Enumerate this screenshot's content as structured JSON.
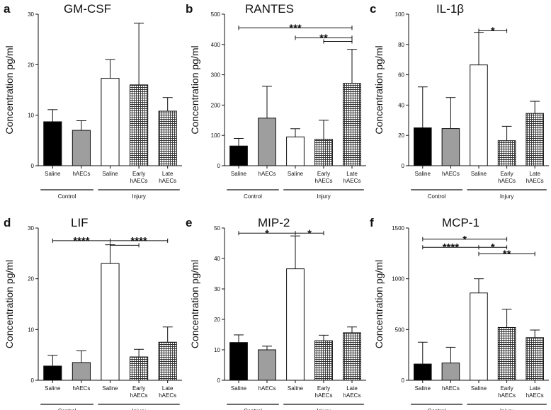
{
  "colors": {
    "saline_control": "#000000",
    "haecs_control": "#9e9e9e",
    "saline_injury": "#ffffff",
    "hatch": "#333333",
    "axis": "#111111"
  },
  "chart_data": [
    {
      "type": "bar",
      "letter": "a",
      "title": "GM-CSF",
      "ylabel": "Concentration pg/ml",
      "ylim": [
        0,
        30
      ],
      "yticks": [
        "0",
        "10",
        "20",
        "30"
      ],
      "categories": [
        "Saline",
        "hAECs",
        "Saline",
        "Early hAECs",
        "Late hAECs"
      ],
      "category_lines": [
        [
          "Saline"
        ],
        [
          "hAECs"
        ],
        [
          "Saline"
        ],
        [
          "Early",
          "hAECs"
        ],
        [
          "Late",
          "hAECs"
        ]
      ],
      "groups": [
        {
          "label": "Control",
          "span": [
            0,
            1
          ]
        },
        {
          "label": "Injury",
          "span": [
            2,
            4
          ]
        }
      ],
      "values": [
        8.7,
        7.0,
        17.3,
        16.0,
        10.8
      ],
      "errors": [
        2.4,
        1.9,
        3.7,
        12.2,
        2.7
      ],
      "significance": []
    },
    {
      "type": "bar",
      "letter": "b",
      "title": "RANTES",
      "ylabel": "Concentration pg/ml",
      "ylim": [
        0,
        500
      ],
      "yticks": [
        "0",
        "100",
        "200",
        "300",
        "400",
        "500"
      ],
      "categories": [
        "Saline",
        "hAECs",
        "Saline",
        "Early hAECs",
        "Late hAECs"
      ],
      "category_lines": [
        [
          "Saline"
        ],
        [
          "hAECs"
        ],
        [
          "Saline"
        ],
        [
          "Early",
          "hAECs"
        ],
        [
          "Late",
          "hAECs"
        ]
      ],
      "groups": [
        {
          "label": "Control",
          "span": [
            0,
            1
          ]
        },
        {
          "label": "Injury",
          "span": [
            2,
            4
          ]
        }
      ],
      "values": [
        65,
        157,
        95,
        87,
        272
      ],
      "errors": [
        25,
        105,
        27,
        63,
        112
      ],
      "significance": [
        {
          "from": 0,
          "to": 4,
          "y": 455,
          "label": "***"
        },
        {
          "from": 2,
          "to": 4,
          "y": 422,
          "label": "**"
        },
        {
          "from": 3,
          "to": 4,
          "y": 410,
          "label": ""
        }
      ]
    },
    {
      "type": "bar",
      "letter": "c",
      "title": "IL-1β",
      "ylabel": "Concentration pg/ml",
      "ylim": [
        0,
        100
      ],
      "yticks": [
        "0",
        "20",
        "40",
        "60",
        "80",
        "100"
      ],
      "categories": [
        "Saline",
        "hAECs",
        "Saline",
        "Early hAECs",
        "Late hAECs"
      ],
      "category_lines": [
        [
          "Saline"
        ],
        [
          "hAECs"
        ],
        [
          "Saline"
        ],
        [
          "Early",
          "hAECs"
        ],
        [
          "Late",
          "hAECs"
        ]
      ],
      "groups": [
        {
          "label": "Control",
          "span": [
            0,
            1
          ]
        },
        {
          "label": "Injury",
          "span": [
            2,
            4
          ]
        }
      ],
      "values": [
        25,
        24.5,
        66.5,
        16.5,
        34.5
      ],
      "errors": [
        27,
        20.5,
        21.5,
        9.5,
        8
      ],
      "significance": [
        {
          "from": 2,
          "to": 3,
          "y": 89,
          "label": "*"
        }
      ]
    },
    {
      "type": "bar",
      "letter": "d",
      "title": "LIF",
      "ylabel": "Concentration pg/ml",
      "ylim": [
        0,
        30
      ],
      "yticks": [
        "0",
        "10",
        "20",
        "30"
      ],
      "categories": [
        "Saline",
        "hAECs",
        "Saline",
        "Early hAECs",
        "Late hAECs"
      ],
      "category_lines": [
        [
          "Saline"
        ],
        [
          "hAECs"
        ],
        [
          "Saline"
        ],
        [
          "Early",
          "hAECs"
        ],
        [
          "Late",
          "hAECs"
        ]
      ],
      "groups": [
        {
          "label": "Control",
          "span": [
            0,
            1
          ]
        },
        {
          "label": "Injury",
          "span": [
            2,
            4
          ]
        }
      ],
      "values": [
        2.8,
        3.5,
        23.0,
        4.6,
        7.5
      ],
      "errors": [
        2.1,
        2.3,
        3.7,
        1.5,
        3.0
      ],
      "significance": [
        {
          "from": 0,
          "to": 2,
          "y": 27.5,
          "label": "****"
        },
        {
          "from": 2,
          "to": 4,
          "y": 27.5,
          "label": "****"
        },
        {
          "from": 2,
          "to": 3,
          "y": 26.6,
          "label": ""
        }
      ]
    },
    {
      "type": "bar",
      "letter": "e",
      "title": "MIP-2",
      "ylabel": "Concentration pg/ml",
      "ylim": [
        0,
        50
      ],
      "yticks": [
        "0",
        "10",
        "20",
        "30",
        "40",
        "50"
      ],
      "categories": [
        "Saline",
        "hAECs",
        "Saline",
        "Early hAECs",
        "Late hAECs"
      ],
      "category_lines": [
        [
          "Saline"
        ],
        [
          "hAECs"
        ],
        [
          "Saline"
        ],
        [
          "Early",
          "hAECs"
        ],
        [
          "Late",
          "hAECs"
        ]
      ],
      "groups": [
        {
          "label": "Control",
          "span": [
            0,
            1
          ]
        },
        {
          "label": "Injury",
          "span": [
            2,
            4
          ]
        }
      ],
      "values": [
        12.4,
        10.0,
        36.6,
        13.0,
        15.6
      ],
      "errors": [
        2.5,
        1.2,
        10.8,
        1.8,
        1.9
      ],
      "significance": [
        {
          "from": 0,
          "to": 2,
          "y": 48.3,
          "label": "*"
        },
        {
          "from": 2,
          "to": 3,
          "y": 48.3,
          "label": "*"
        }
      ]
    },
    {
      "type": "bar",
      "letter": "f",
      "title": "MCP-1",
      "ylabel": "Concentration pg/ml",
      "ylim": [
        0,
        1500
      ],
      "yticks": [
        "0",
        "500",
        "1000",
        "1500"
      ],
      "categories": [
        "Saline",
        "hAECs",
        "Saline",
        "Early hAECs",
        "Late hAECs"
      ],
      "category_lines": [
        [
          "Saline"
        ],
        [
          "hAECs"
        ],
        [
          "Saline"
        ],
        [
          "Early",
          "hAECs"
        ],
        [
          "Late",
          "hAECs"
        ]
      ],
      "groups": [
        {
          "label": "Control",
          "span": [
            0,
            1
          ]
        },
        {
          "label": "Injury",
          "span": [
            2,
            4
          ]
        }
      ],
      "values": [
        160,
        170,
        860,
        520,
        420
      ],
      "errors": [
        215,
        155,
        140,
        180,
        75
      ],
      "significance": [
        {
          "from": 0,
          "to": 3,
          "y": 1390,
          "label": "*"
        },
        {
          "from": 0,
          "to": 2,
          "y": 1310,
          "label": "****"
        },
        {
          "from": 2,
          "to": 3,
          "y": 1310,
          "label": "*"
        },
        {
          "from": 2,
          "to": 4,
          "y": 1245,
          "label": "**"
        }
      ]
    }
  ]
}
